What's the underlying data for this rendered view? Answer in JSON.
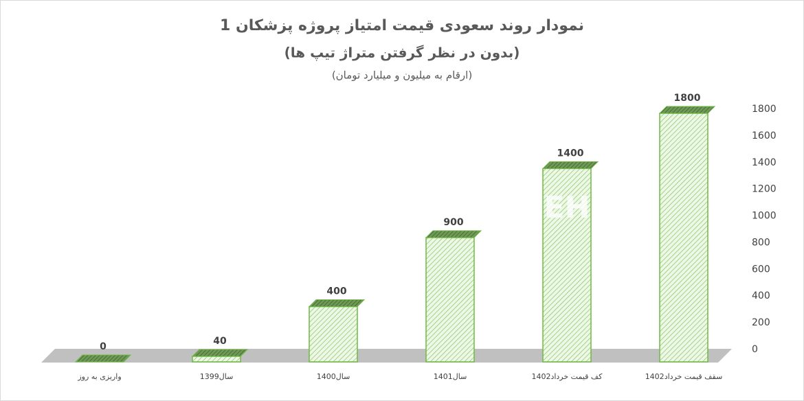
{
  "chart_data": {
    "type": "bar3d",
    "title": "نمودار روند سعودی قیمت امتیاز پروژه پزشکان 1",
    "subtitle": "(بدون در نظر گرفتن متراژ تیپ ها)",
    "note": "(ارقام به میلیون و میلیارد تومان)",
    "watermark": "EH",
    "categories": [
      "واریزی به روز",
      "سال1399",
      "سال1400",
      "سال1401",
      "کف قیمت خرداد1402",
      "سقف قیمت خرداد1402"
    ],
    "values": [
      0,
      40,
      400,
      900,
      1400,
      1800
    ],
    "color": "#d9f0c9",
    "ylim": [
      0,
      1800
    ],
    "yticks": [
      0,
      200,
      400,
      600,
      800,
      1000,
      1200,
      1400,
      1600,
      1800
    ]
  }
}
